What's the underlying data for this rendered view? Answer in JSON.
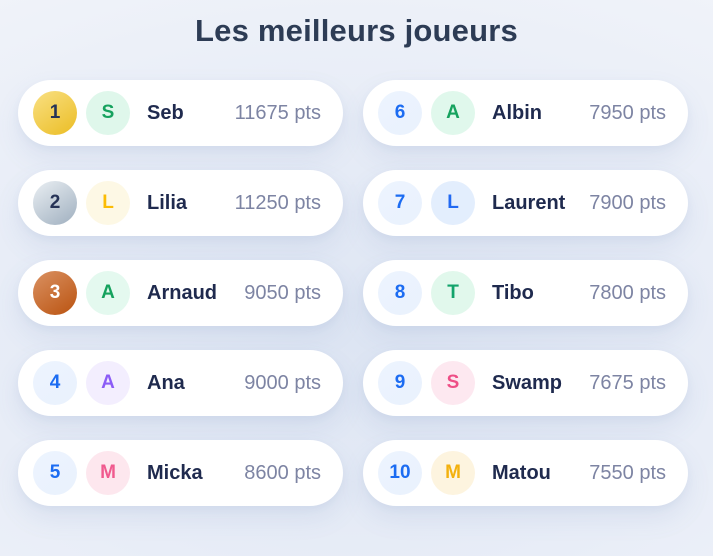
{
  "page": {
    "title": "Les meilleurs joueurs",
    "title_color": "#2d3c55",
    "background_center": "#dde5f3",
    "background_edge": "#f5f7fb",
    "card_color": "#ffffff",
    "name_color": "#1f2a4e",
    "points_color": "#7d84a3"
  },
  "leaderboard": {
    "players": [
      {
        "rank": "1",
        "initial": "S",
        "name": "Seb",
        "points": "11675 pts",
        "rank_bg_from": "#f9e083",
        "rank_bg_to": "#ebbd24",
        "rank_color": "#263357",
        "avatar_bg": "#dff7eb",
        "avatar_color": "#16a25e",
        "medal": "gold"
      },
      {
        "rank": "2",
        "initial": "L",
        "name": "Lilia",
        "points": "11250 pts",
        "rank_bg_from": "#eaeff3",
        "rank_bg_to": "#9fafbf",
        "rank_color": "#263357",
        "avatar_bg": "#fdf8e5",
        "avatar_color": "#fbbc05",
        "medal": "silver"
      },
      {
        "rank": "3",
        "initial": "A",
        "name": "Arnaud",
        "points": "9050 pts",
        "rank_bg_from": "#da9162",
        "rank_bg_to": "#ba5310",
        "rank_color": "#ffffff",
        "avatar_bg": "#e4f9ef",
        "avatar_color": "#16a25e",
        "medal": "bronze"
      },
      {
        "rank": "4",
        "initial": "A",
        "name": "Ana",
        "points": "9000 pts",
        "rank_bg_from": "#edf4fe",
        "rank_bg_to": "#e9f1fd",
        "rank_color": "#1c6cf2",
        "avatar_bg": "#f3eefe",
        "avatar_color": "#8b5cf6",
        "medal": "none"
      },
      {
        "rank": "5",
        "initial": "M",
        "name": "Micka",
        "points": "8600 pts",
        "rank_bg_from": "#edf4fe",
        "rank_bg_to": "#e9f1fd",
        "rank_color": "#1c6cf2",
        "avatar_bg": "#fde7ee",
        "avatar_color": "#f05a8e",
        "medal": "none"
      },
      {
        "rank": "6",
        "initial": "A",
        "name": "Albin",
        "points": "7950 pts",
        "rank_bg_from": "#edf4fe",
        "rank_bg_to": "#e9f1fd",
        "rank_color": "#1c6cf2",
        "avatar_bg": "#e0f8ec",
        "avatar_color": "#16a25e",
        "medal": "none"
      },
      {
        "rank": "7",
        "initial": "L",
        "name": "Laurent",
        "points": "7900 pts",
        "rank_bg_from": "#edf4fe",
        "rank_bg_to": "#e9f1fd",
        "rank_color": "#1c6cf2",
        "avatar_bg": "#e3eefd",
        "avatar_color": "#2169f2",
        "medal": "none"
      },
      {
        "rank": "8",
        "initial": "T",
        "name": "Tibo",
        "points": "7800 pts",
        "rank_bg_from": "#edf4fe",
        "rank_bg_to": "#e9f1fd",
        "rank_color": "#1c6cf2",
        "avatar_bg": "#e1f8ec",
        "avatar_color": "#12a36b",
        "medal": "none"
      },
      {
        "rank": "9",
        "initial": "S",
        "name": "Swamp",
        "points": "7675 pts",
        "rank_bg_from": "#edf4fe",
        "rank_bg_to": "#e9f1fd",
        "rank_color": "#1c6cf2",
        "avatar_bg": "#fde8f0",
        "avatar_color": "#ee4e86",
        "medal": "none"
      },
      {
        "rank": "10",
        "initial": "M",
        "name": "Matou",
        "points": "7550 pts",
        "rank_bg_from": "#edf4fe",
        "rank_bg_to": "#e9f1fd",
        "rank_color": "#1c6cf2",
        "avatar_bg": "#fdf4df",
        "avatar_color": "#f3b10e",
        "medal": "none"
      }
    ]
  }
}
